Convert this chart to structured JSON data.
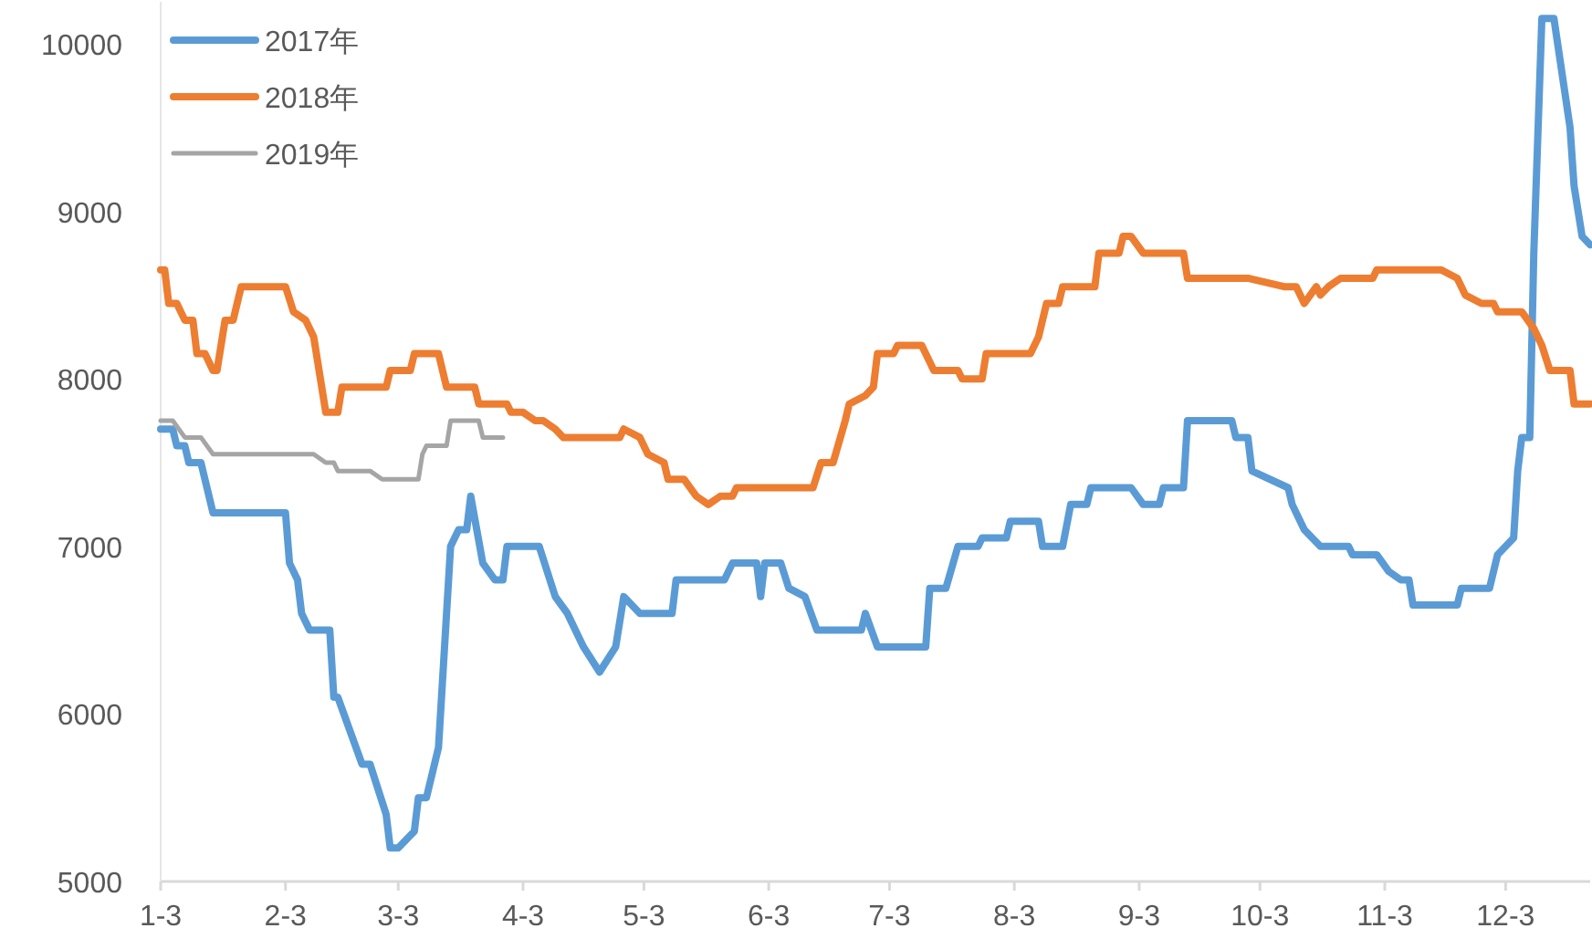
{
  "chart_data": {
    "type": "line",
    "xlim": [
      "--01-03",
      "--12-24"
    ],
    "ylim": [
      5000,
      10250
    ],
    "xticks": [
      {
        "value": "--01-03",
        "label": "1-3"
      },
      {
        "value": "--02-03",
        "label": "2-3"
      },
      {
        "value": "--03-03",
        "label": "3-3"
      },
      {
        "value": "--04-03",
        "label": "4-3"
      },
      {
        "value": "--05-03",
        "label": "5-3"
      },
      {
        "value": "--06-03",
        "label": "6-3"
      },
      {
        "value": "--07-03",
        "label": "7-3"
      },
      {
        "value": "--08-03",
        "label": "8-3"
      },
      {
        "value": "--09-03",
        "label": "9-3"
      },
      {
        "value": "--10-03",
        "label": "10-3"
      },
      {
        "value": "--11-03",
        "label": "11-3"
      },
      {
        "value": "--12-03",
        "label": "12-3"
      }
    ],
    "yticks": [
      5000,
      6000,
      7000,
      8000,
      9000,
      10000
    ],
    "grid": false,
    "legend": "top left",
    "marker": "none",
    "line_style": "solid",
    "series": [
      {
        "name": "2017年",
        "color": "#5b9bd5",
        "x": [
          "--01-03",
          "--01-06",
          "--01-07",
          "--01-09",
          "--01-10",
          "--01-13",
          "--01-14",
          "--01-16",
          "--02-03",
          "--02-04",
          "--02-06",
          "--02-07",
          "--02-09",
          "--02-14",
          "--02-15",
          "--02-16",
          "--02-22",
          "--02-24",
          "--02-28",
          "--03-01",
          "--03-03",
          "--03-07",
          "--03-08",
          "--03-10",
          "--03-13",
          "--03-16",
          "--03-18",
          "--03-20",
          "--03-21",
          "--03-24",
          "--03-27",
          "--03-29",
          "--03-30",
          "--04-07",
          "--04-11",
          "--04-14",
          "--04-18",
          "--04-22",
          "--04-26",
          "--04-28",
          "--05-02",
          "--05-10",
          "--05-11",
          "--05-23",
          "--05-25",
          "--05-31",
          "--06-01",
          "--06-02",
          "--06-06",
          "--06-08",
          "--06-12",
          "--06-15",
          "--06-26",
          "--06-27",
          "--06-30",
          "--07-12",
          "--07-13",
          "--07-17",
          "--07-20",
          "--07-25",
          "--07-26",
          "--08-01",
          "--08-02",
          "--08-09",
          "--08-10",
          "--08-15",
          "--08-17",
          "--08-21",
          "--08-22",
          "--09-01",
          "--09-04",
          "--09-08",
          "--09-09",
          "--09-14",
          "--09-15",
          "--09-26",
          "--09-27",
          "--09-30",
          "--10-01",
          "--10-10",
          "--10-11",
          "--10-14",
          "--10-18",
          "--10-25",
          "--10-26",
          "--11-01",
          "--11-04",
          "--11-07",
          "--11-09",
          "--11-10",
          "--11-21",
          "--11-22",
          "--11-29",
          "--12-01",
          "--12-05",
          "--12-06",
          "--12-07",
          "--12-09",
          "--12-10",
          "--12-12",
          "--12-15",
          "--12-19",
          "--12-20",
          "--12-22",
          "--12-24"
        ],
        "values": [
          7700,
          7700,
          7600,
          7600,
          7500,
          7500,
          7400,
          7200,
          7200,
          6900,
          6800,
          6600,
          6500,
          6500,
          6100,
          6100,
          5700,
          5700,
          5400,
          5200,
          5200,
          5300,
          5500,
          5500,
          5800,
          7000,
          7100,
          7100,
          7300,
          6900,
          6800,
          6800,
          7000,
          7000,
          6700,
          6600,
          6400,
          6250,
          6400,
          6700,
          6600,
          6600,
          6800,
          6800,
          6900,
          6900,
          6700,
          6900,
          6900,
          6750,
          6700,
          6500,
          6500,
          6600,
          6400,
          6400,
          6750,
          6750,
          7000,
          7000,
          7050,
          7050,
          7150,
          7150,
          7000,
          7000,
          7250,
          7250,
          7350,
          7350,
          7250,
          7250,
          7350,
          7350,
          7750,
          7750,
          7650,
          7650,
          7450,
          7350,
          7250,
          7100,
          7000,
          7000,
          6950,
          6950,
          6850,
          6800,
          6800,
          6650,
          6650,
          6750,
          6750,
          6950,
          7050,
          7450,
          7650,
          7650,
          8750,
          10150,
          10150,
          9500,
          9150,
          8850,
          8800
        ]
      },
      {
        "name": "2018年",
        "color": "#ed7d31",
        "x": [
          "--01-03",
          "--01-04",
          "--01-05",
          "--01-07",
          "--01-09",
          "--01-11",
          "--01-12",
          "--01-14",
          "--01-16",
          "--01-17",
          "--01-19",
          "--01-21",
          "--01-23",
          "--02-03",
          "--02-05",
          "--02-08",
          "--02-10",
          "--02-13",
          "--02-16",
          "--02-17",
          "--02-28",
          "--03-01",
          "--03-06",
          "--03-07",
          "--03-13",
          "--03-15",
          "--03-22",
          "--03-23",
          "--03-30",
          "--03-31",
          "--04-03",
          "--04-06",
          "--04-08",
          "--04-11",
          "--04-13",
          "--04-27",
          "--04-28",
          "--05-02",
          "--05-04",
          "--05-08",
          "--05-09",
          "--05-13",
          "--05-16",
          "--05-19",
          "--05-22",
          "--05-25",
          "--05-26",
          "--06-14",
          "--06-16",
          "--06-19",
          "--06-22",
          "--06-23",
          "--06-27",
          "--06-29",
          "--06-30",
          "--07-04",
          "--07-05",
          "--07-11",
          "--07-14",
          "--07-20",
          "--07-21",
          "--07-26",
          "--07-27",
          "--08-07",
          "--08-09",
          "--08-11",
          "--08-14",
          "--08-15",
          "--08-23",
          "--08-24",
          "--08-29",
          "--08-30",
          "--09-01",
          "--09-04",
          "--09-14",
          "--09-15",
          "--09-30",
          "--10-09",
          "--10-12",
          "--10-14",
          "--10-17",
          "--10-18",
          "--10-20",
          "--10-23",
          "--10-31",
          "--11-01",
          "--11-17",
          "--11-21",
          "--11-23",
          "--11-27",
          "--11-30",
          "--12-01",
          "--12-07",
          "--12-10",
          "--12-12",
          "--12-14",
          "--12-19",
          "--12-20",
          "--12-24"
        ],
        "values": [
          8650,
          8650,
          8450,
          8450,
          8350,
          8350,
          8150,
          8150,
          8050,
          8050,
          8350,
          8350,
          8550,
          8550,
          8400,
          8350,
          8250,
          7800,
          7800,
          7950,
          7950,
          8050,
          8050,
          8150,
          8150,
          7950,
          7950,
          7850,
          7850,
          7800,
          7800,
          7750,
          7750,
          7700,
          7650,
          7650,
          7700,
          7650,
          7550,
          7500,
          7400,
          7400,
          7300,
          7250,
          7300,
          7300,
          7350,
          7350,
          7500,
          7500,
          7750,
          7850,
          7900,
          7950,
          8150,
          8150,
          8200,
          8200,
          8050,
          8050,
          8000,
          8000,
          8150,
          8150,
          8250,
          8450,
          8450,
          8550,
          8550,
          8750,
          8750,
          8850,
          8850,
          8750,
          8750,
          8600,
          8600,
          8550,
          8550,
          8450,
          8550,
          8500,
          8550,
          8600,
          8600,
          8650,
          8650,
          8600,
          8500,
          8450,
          8450,
          8400,
          8400,
          8300,
          8200,
          8050,
          8050,
          7850,
          7850
        ]
      },
      {
        "name": "2019年",
        "color": "#a5a5a5",
        "x": [
          "--01-03",
          "--01-06",
          "--01-09",
          "--01-13",
          "--01-16",
          "--02-10",
          "--02-13",
          "--02-15",
          "--02-16",
          "--02-24",
          "--02-27",
          "--03-08",
          "--03-09",
          "--03-10",
          "--03-15",
          "--03-16",
          "--03-23",
          "--03-24",
          "--03-29"
        ],
        "values": [
          7750,
          7750,
          7650,
          7650,
          7550,
          7550,
          7500,
          7500,
          7450,
          7450,
          7400,
          7400,
          7550,
          7600,
          7600,
          7750,
          7750,
          7650,
          7650
        ]
      }
    ]
  }
}
